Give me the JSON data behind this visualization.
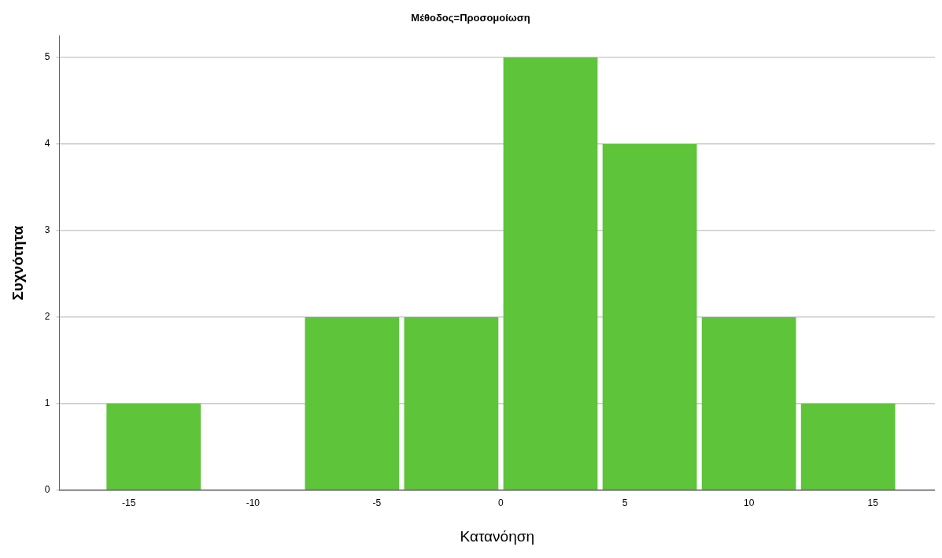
{
  "chart_data": {
    "type": "histogram",
    "title": "Μέθοδος=Προσομοίωση",
    "xlabel": "Κατανόηση",
    "ylabel": "Συχνότητα",
    "bins": [
      -16,
      -12,
      -8,
      -4,
      0,
      4,
      8,
      12,
      16
    ],
    "values": [
      1,
      0,
      2,
      2,
      5,
      4,
      2,
      1
    ],
    "color": "#5ec43a",
    "xlim": [
      -17.8,
      17.5
    ],
    "xticks": [
      -15,
      -10,
      -5,
      0,
      5,
      10,
      15
    ],
    "ylim": [
      0,
      5.25
    ],
    "yticks": [
      0,
      1,
      2,
      3,
      4,
      5
    ],
    "grid": "y",
    "legend": false
  }
}
